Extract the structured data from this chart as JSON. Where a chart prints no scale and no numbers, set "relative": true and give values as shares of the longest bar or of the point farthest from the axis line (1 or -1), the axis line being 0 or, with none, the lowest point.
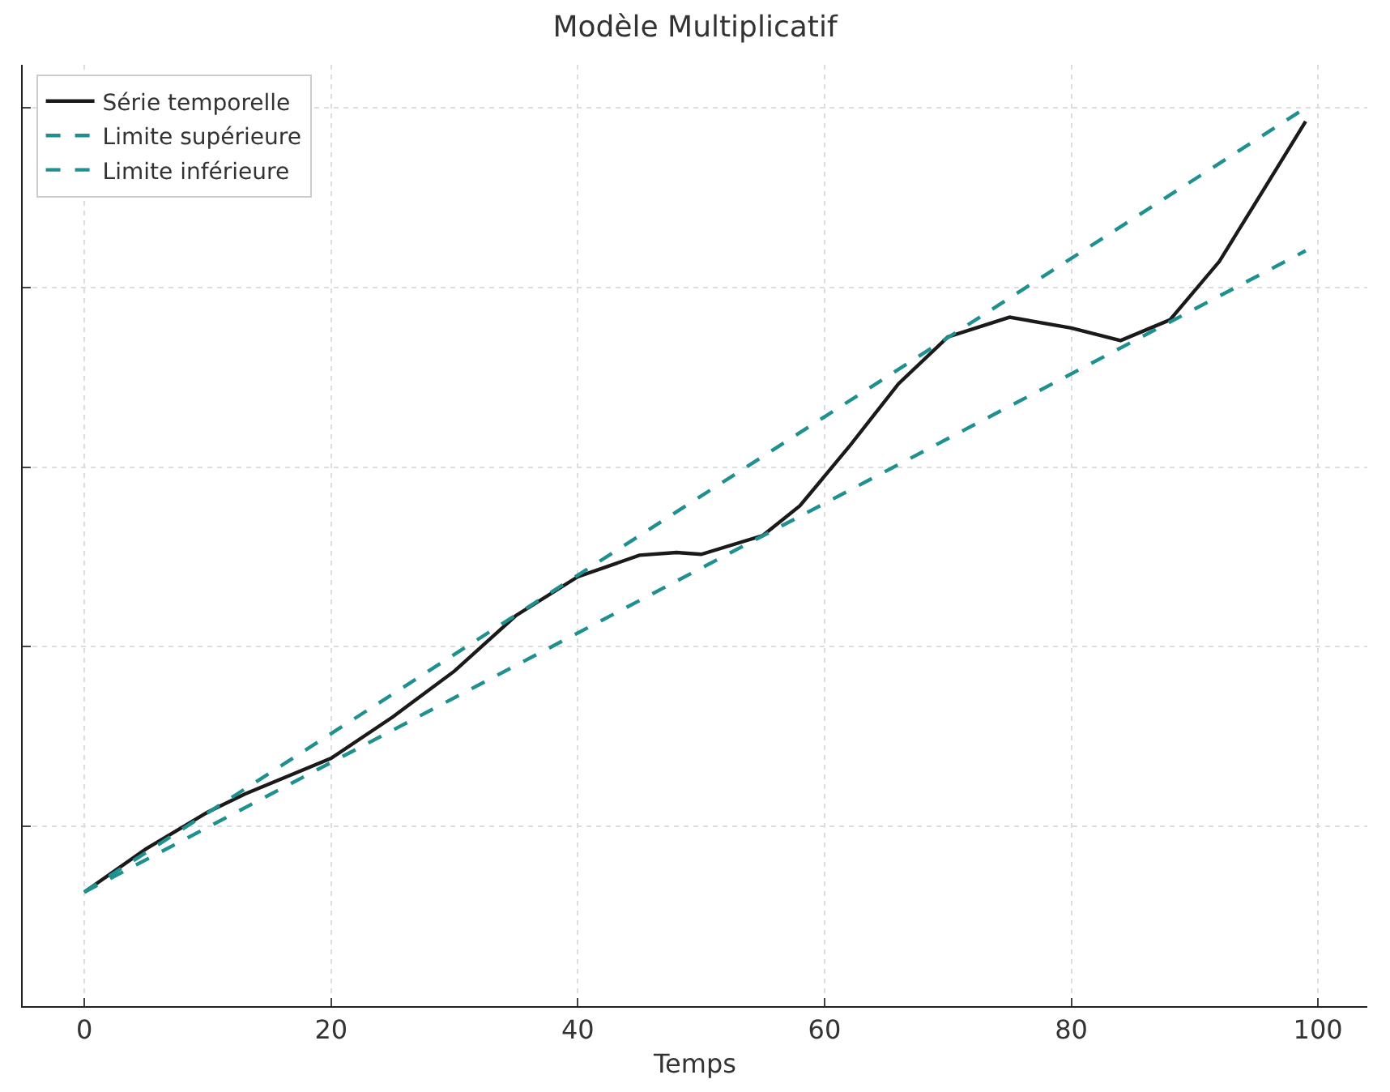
{
  "chart_data": {
    "type": "line",
    "title": "Modèle Multiplicatif",
    "xlabel": "Temps",
    "relative": true,
    "xlim": [
      -5,
      104
    ],
    "xticks": [
      0,
      20,
      40,
      60,
      80,
      100
    ],
    "grid": true,
    "legend": "top left",
    "tick_labels": "x",
    "marker": "none",
    "series": [
      {
        "name": "Série temporelle",
        "color": "#1a1a1a",
        "line_style": "solid",
        "x": [
          0,
          5,
          10,
          13,
          20,
          25,
          30,
          35,
          40,
          45,
          48,
          50,
          55,
          58,
          62,
          66,
          70,
          75,
          80,
          84,
          88,
          92,
          96,
          99
        ],
        "values": [
          0.127,
          0.175,
          0.216,
          0.236,
          0.276,
          0.322,
          0.373,
          0.435,
          0.478,
          0.502,
          0.505,
          0.503,
          0.524,
          0.557,
          0.623,
          0.693,
          0.745,
          0.767,
          0.755,
          0.741,
          0.764,
          0.829,
          0.918,
          0.985
        ]
      },
      {
        "name": "Limite supérieure",
        "color": "#1f9090",
        "line_style": "dashed",
        "x": [
          0,
          99
        ],
        "values": [
          0.127,
          1
        ]
      },
      {
        "name": "Limite inférieure",
        "color": "#1f9090",
        "line_style": "dashed",
        "x": [
          0,
          99
        ],
        "values": [
          0.127,
          0.841
        ]
      }
    ]
  }
}
